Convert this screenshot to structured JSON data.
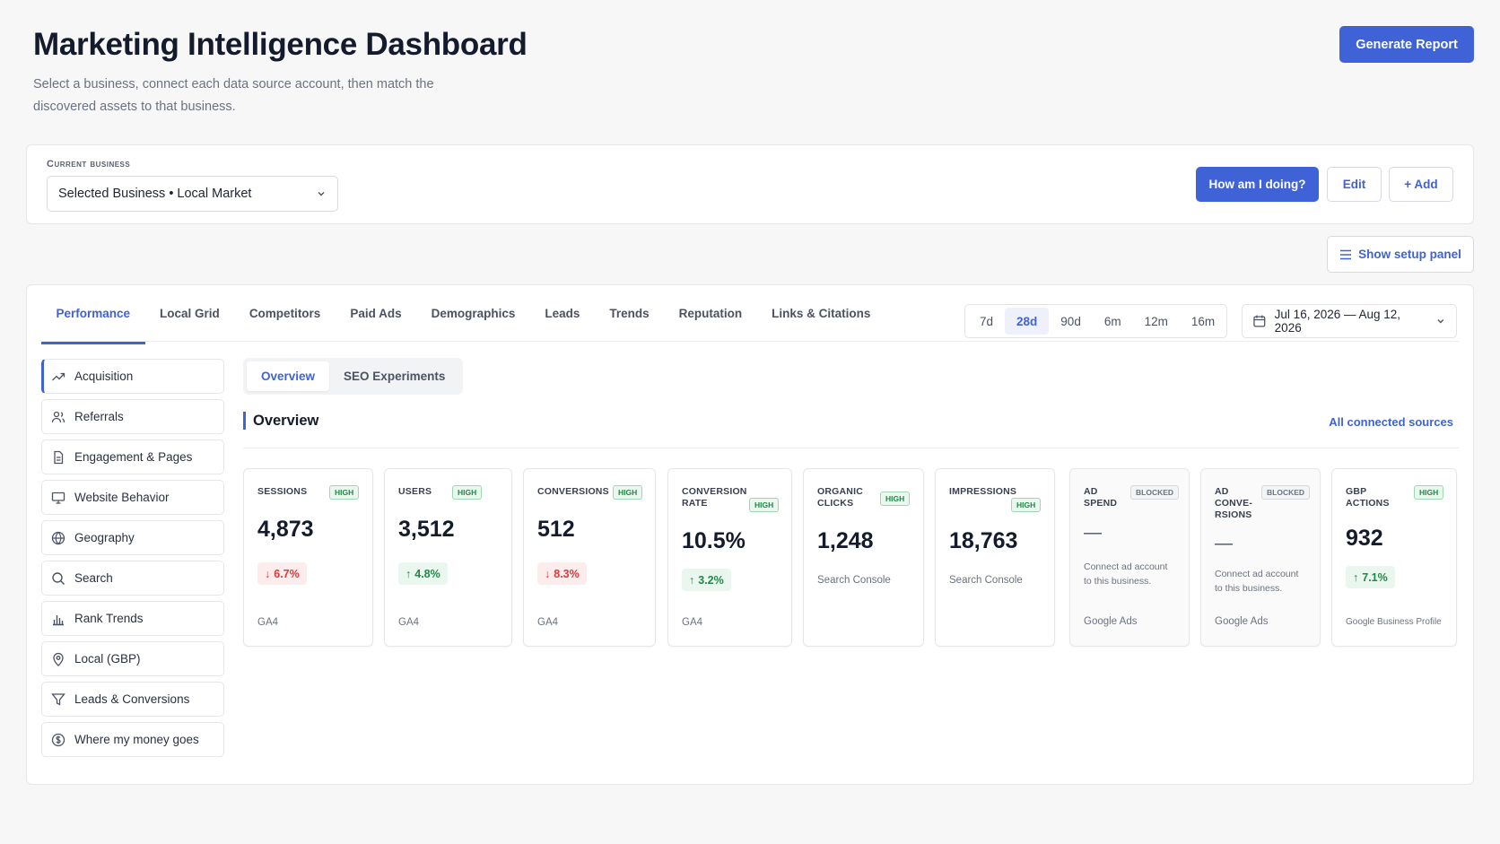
{
  "header": {
    "title": "Marketing Intelligence Dashboard",
    "subtitle": "Select a business, connect each data source account, then match the discovered assets to that business.",
    "generate_label": "Generate Report"
  },
  "business": {
    "label": "Current business",
    "selected": "Selected Business • Local Market",
    "how_label": "How am I doing?",
    "edit_label": "Edit",
    "add_label": "+ Add"
  },
  "setup": {
    "label": "Show setup panel"
  },
  "tabs": [
    "Performance",
    "Local Grid",
    "Competitors",
    "Paid Ads",
    "Demographics",
    "Leads",
    "Trends",
    "Reputation",
    "Links & Citations"
  ],
  "ranges": [
    "7d",
    "28d",
    "90d",
    "6m",
    "12m",
    "16m"
  ],
  "date_range": "Jul 16, 2026 — Aug 12, 2026",
  "sidebar": {
    "items": [
      {
        "label": "Acquisition",
        "icon": "trending-up-icon"
      },
      {
        "label": "Referrals",
        "icon": "users-icon"
      },
      {
        "label": "Engagement & Pages",
        "icon": "file-icon"
      },
      {
        "label": "Website Behavior",
        "icon": "monitor-icon"
      },
      {
        "label": "Geography",
        "icon": "globe-icon"
      },
      {
        "label": "Search",
        "icon": "search-icon"
      },
      {
        "label": "Rank Trends",
        "icon": "bar-chart-icon"
      },
      {
        "label": "Local (GBP)",
        "icon": "map-pin-icon"
      },
      {
        "label": "Leads & Conversions",
        "icon": "filter-icon"
      },
      {
        "label": "Where my money goes",
        "icon": "dollar-circle-icon"
      }
    ]
  },
  "subtabs": [
    "Overview",
    "SEO Experiments"
  ],
  "section": {
    "title": "Overview",
    "sources_link": "All connected sources"
  },
  "metrics": [
    {
      "label": "SESSIONS",
      "badge": "HIGH",
      "value": "4,873",
      "delta": "6.7%",
      "direction": "down",
      "source": "GA4"
    },
    {
      "label": "USERS",
      "badge": "HIGH",
      "value": "3,512",
      "delta": "4.8%",
      "direction": "up",
      "source": "GA4"
    },
    {
      "label": "CONVERSIONS",
      "badge": "HIGH",
      "value": "512",
      "delta": "8.3%",
      "direction": "down",
      "source": "GA4"
    },
    {
      "label": "CONVERSION RATE",
      "badge": "HIGH",
      "value": "10.5%",
      "delta": "3.2%",
      "direction": "up",
      "source": "GA4"
    },
    {
      "label": "ORGANIC CLICKS",
      "badge": "HIGH",
      "value": "1,248",
      "sub": "Search Console"
    },
    {
      "label": "IMPRESSIONS",
      "badge": "HIGH",
      "value": "18,763",
      "sub": "Search Console"
    },
    {
      "label": "AD SPEND",
      "badge": "BLOCKED",
      "value": "—",
      "sub": "Connect ad account to this business.",
      "source": "Google Ads"
    },
    {
      "label": "AD CONVE-RSIONS",
      "badge": "BLOCKED",
      "value": "—",
      "sub": "Connect ad account to this business.",
      "source": "Google Ads"
    },
    {
      "label": "GBP ACTIONS",
      "badge": "HIGH",
      "value": "932",
      "delta": "7.1%",
      "direction": "up",
      "source": "Google Business Profile"
    }
  ],
  "colors": {
    "accent": "#3f63d6",
    "positive": "#1f8a48",
    "negative": "#d93a3a"
  }
}
